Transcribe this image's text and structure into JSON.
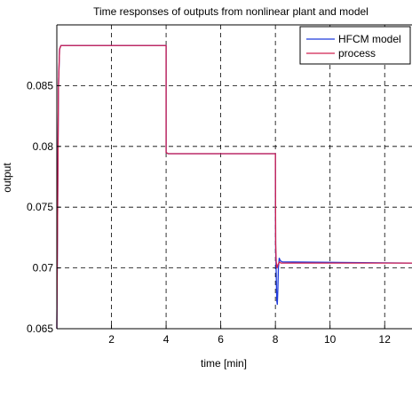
{
  "chart_data": {
    "type": "line",
    "title": "Time responses of outputs from nonlinear plant and model",
    "xlabel": "time [min]",
    "ylabel": "output",
    "xlim": [
      0,
      13
    ],
    "ylim": [
      0.065,
      0.09
    ],
    "x_ticks": [
      2,
      4,
      6,
      8,
      10,
      12
    ],
    "x_tick_labels": [
      "2",
      "4",
      "6",
      "8",
      "10",
      "12"
    ],
    "y_ticks": [
      0.065,
      0.07,
      0.075,
      0.08,
      0.085
    ],
    "y_tick_labels": [
      "0.065",
      "0.07",
      "0.075",
      "0.08",
      "0.085"
    ],
    "grid": true,
    "legend_position": "top-right",
    "series": [
      {
        "name": "HFCM model",
        "color": "#1f3bdc",
        "x": [
          0,
          0.03,
          0.06,
          0.1,
          0.15,
          0.2,
          4.0,
          4.0,
          4.08,
          8.0,
          8.01,
          8.03,
          8.05,
          8.07,
          8.09,
          8.11,
          8.14,
          8.18,
          8.25,
          13
        ],
        "y": [
          0.065,
          0.075,
          0.085,
          0.088,
          0.0883,
          0.0883,
          0.0883,
          0.0795,
          0.0794,
          0.0794,
          0.0715,
          0.0695,
          0.0673,
          0.067,
          0.0682,
          0.07,
          0.0708,
          0.0706,
          0.0705,
          0.0704
        ]
      },
      {
        "name": "process",
        "color": "#d02050",
        "x": [
          0,
          0.03,
          0.06,
          0.1,
          0.15,
          0.2,
          4.0,
          4.0,
          4.08,
          8.0,
          8.01,
          8.03,
          8.06,
          8.1,
          8.15,
          8.2,
          13
        ],
        "y": [
          0.065,
          0.075,
          0.085,
          0.088,
          0.0883,
          0.0883,
          0.0883,
          0.0795,
          0.0794,
          0.0794,
          0.072,
          0.0705,
          0.07,
          0.0703,
          0.0705,
          0.0704,
          0.0704
        ]
      }
    ]
  }
}
